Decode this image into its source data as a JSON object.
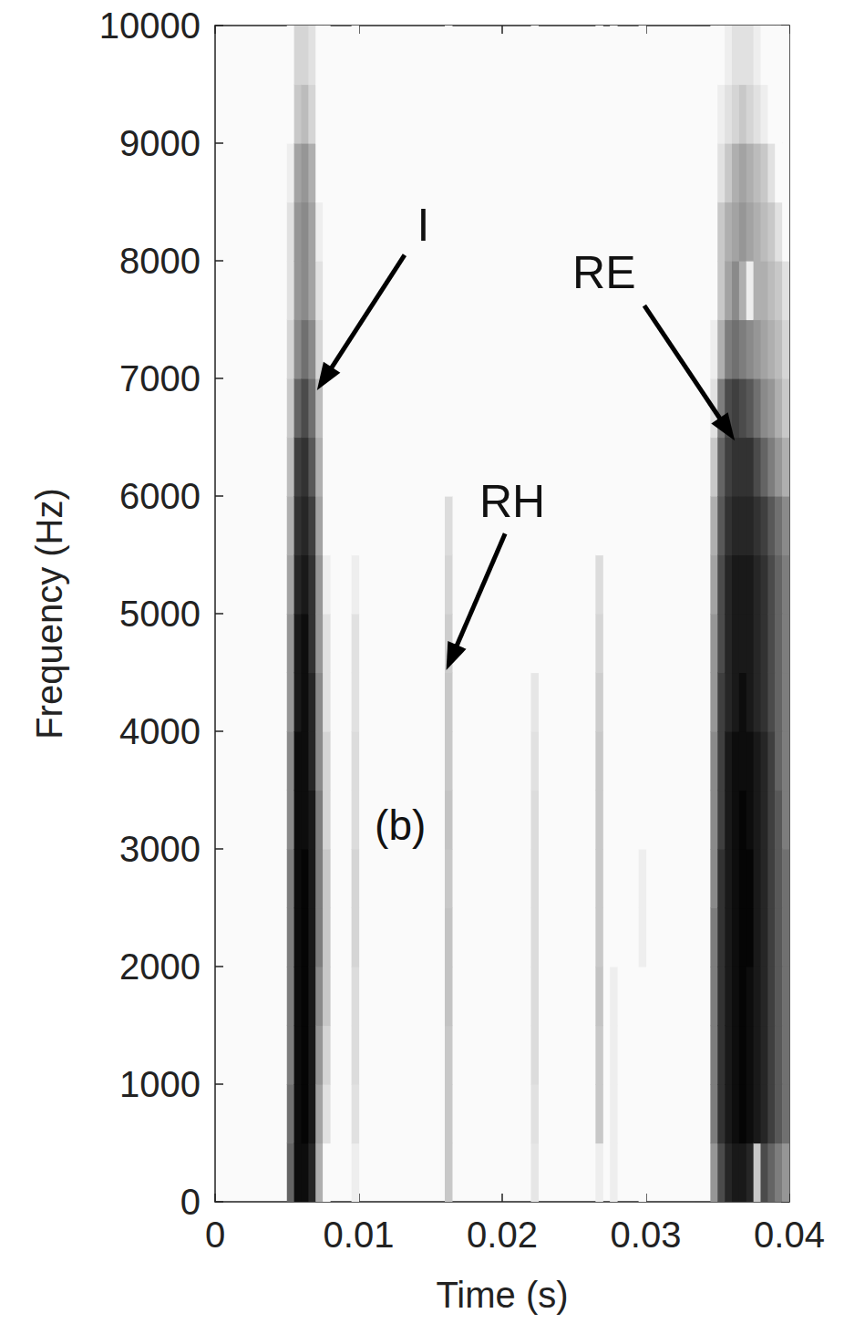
{
  "chart_data": {
    "type": "spectrogram",
    "x_label": "Time (s)",
    "y_label": "Frequency (Hz)",
    "xlim": [
      0,
      0.04
    ],
    "xticks": [
      0,
      0.01,
      0.02,
      0.03,
      0.04
    ],
    "ylim": [
      0,
      10000
    ],
    "yticks": [
      0,
      1000,
      2000,
      3000,
      4000,
      5000,
      6000,
      7000,
      8000,
      9000,
      10000
    ],
    "time_step": 0.0005,
    "frequency_step": 500,
    "frequencies": [
      0,
      500,
      1000,
      1500,
      2000,
      2500,
      3000,
      3500,
      4000,
      4500,
      5000,
      5500,
      6000,
      6500,
      7000,
      7500,
      8000,
      8500,
      9000,
      9500
    ],
    "intensity_range": [
      0,
      1
    ],
    "columns": [
      {
        "time": 0.005,
        "levels": [
          0.6,
          0.55,
          0.5,
          0.5,
          0.5,
          0.5,
          0.45,
          0.45,
          0.4,
          0.4,
          0.35,
          0.3,
          0.25,
          0.2,
          0.15,
          0.1,
          0.1,
          0.05,
          0,
          0
        ]
      },
      {
        "time": 0.0055,
        "levels": [
          0.95,
          0.95,
          0.95,
          0.95,
          0.95,
          0.95,
          0.95,
          0.95,
          0.9,
          0.9,
          0.85,
          0.8,
          0.75,
          0.6,
          0.45,
          0.4,
          0.4,
          0.35,
          0.2,
          0.15
        ]
      },
      {
        "time": 0.006,
        "levels": [
          0.95,
          0.98,
          0.98,
          0.98,
          0.98,
          0.98,
          0.95,
          0.95,
          0.95,
          0.95,
          0.9,
          0.85,
          0.8,
          0.7,
          0.55,
          0.45,
          0.45,
          0.4,
          0.25,
          0.15
        ]
      },
      {
        "time": 0.0065,
        "levels": [
          0.85,
          0.9,
          0.9,
          0.9,
          0.9,
          0.9,
          0.9,
          0.85,
          0.85,
          0.8,
          0.8,
          0.75,
          0.65,
          0.55,
          0.45,
          0.35,
          0.35,
          0.3,
          0.15,
          0.1
        ]
      },
      {
        "time": 0.007,
        "levels": [
          0.3,
          0.35,
          0.4,
          0.45,
          0.5,
          0.5,
          0.5,
          0.45,
          0.45,
          0.4,
          0.4,
          0.35,
          0.3,
          0.25,
          0.15,
          0.1,
          0.05,
          0,
          0,
          0
        ]
      },
      {
        "time": 0.0075,
        "levels": [
          0,
          0.1,
          0.15,
          0.2,
          0.2,
          0.2,
          0.15,
          0.15,
          0.1,
          0.1,
          0.05,
          0,
          0,
          0,
          0,
          0,
          0,
          0,
          0,
          0
        ]
      },
      {
        "time": 0.0095,
        "levels": [
          0.05,
          0.1,
          0.12,
          0.12,
          0.15,
          0.15,
          0.12,
          0.12,
          0.1,
          0.1,
          0.05,
          0,
          0,
          0,
          0,
          0,
          0,
          0,
          0,
          0
        ]
      },
      {
        "time": 0.016,
        "levels": [
          0.2,
          0.2,
          0.2,
          0.22,
          0.22,
          0.2,
          0.22,
          0.2,
          0.2,
          0.18,
          0.15,
          0.12,
          0,
          0,
          0,
          0,
          0,
          0,
          0,
          0
        ]
      },
      {
        "time": 0.022,
        "levels": [
          0.08,
          0.1,
          0.12,
          0.12,
          0.12,
          0.12,
          0.12,
          0.1,
          0.08,
          0,
          0,
          0,
          0,
          0,
          0,
          0,
          0,
          0,
          0,
          0
        ]
      },
      {
        "time": 0.0265,
        "levels": [
          0.05,
          0.2,
          0.2,
          0.22,
          0.2,
          0.2,
          0.2,
          0.2,
          0.18,
          0.15,
          0.12,
          0,
          0,
          0,
          0,
          0,
          0,
          0,
          0,
          0
        ]
      },
      {
        "time": 0.0275,
        "levels": [
          0.05,
          0.05,
          0.05,
          0.05,
          0,
          0,
          0,
          0,
          0,
          0,
          0,
          0,
          0,
          0,
          0,
          0,
          0,
          0,
          0,
          0
        ]
      },
      {
        "time": 0.0295,
        "levels": [
          0,
          0,
          0,
          0,
          0.05,
          0.05,
          0,
          0,
          0,
          0,
          0,
          0,
          0,
          0,
          0,
          0,
          0,
          0,
          0,
          0
        ]
      },
      {
        "time": 0.0345,
        "levels": [
          0.4,
          0.5,
          0.5,
          0.5,
          0.5,
          0.45,
          0.45,
          0.45,
          0.4,
          0.4,
          0.35,
          0.3,
          0.2,
          0.1,
          0.05,
          0,
          0,
          0,
          0,
          0
        ]
      },
      {
        "time": 0.035,
        "levels": [
          0.7,
          0.8,
          0.8,
          0.8,
          0.8,
          0.8,
          0.75,
          0.75,
          0.75,
          0.7,
          0.7,
          0.65,
          0.6,
          0.5,
          0.3,
          0.2,
          0.2,
          0.1,
          0.05,
          0
        ]
      },
      {
        "time": 0.0355,
        "levels": [
          0.85,
          0.9,
          0.9,
          0.9,
          0.9,
          0.9,
          0.9,
          0.9,
          0.85,
          0.85,
          0.85,
          0.8,
          0.75,
          0.7,
          0.5,
          0.35,
          0.3,
          0.2,
          0.1,
          0.05
        ]
      },
      {
        "time": 0.036,
        "levels": [
          0.9,
          0.95,
          0.95,
          0.95,
          0.95,
          0.95,
          0.95,
          0.95,
          0.9,
          0.9,
          0.9,
          0.85,
          0.8,
          0.75,
          0.55,
          0.45,
          0.35,
          0.3,
          0.15,
          0.1
        ]
      },
      {
        "time": 0.0365,
        "levels": [
          0.9,
          0.98,
          0.98,
          0.98,
          0.98,
          0.98,
          0.98,
          0.95,
          0.95,
          0.9,
          0.9,
          0.85,
          0.8,
          0.7,
          0.5,
          0.3,
          0.4,
          0.35,
          0.2,
          0.1
        ]
      },
      {
        "time": 0.037,
        "levels": [
          0.85,
          0.95,
          0.95,
          0.95,
          0.98,
          0.98,
          0.95,
          0.95,
          0.9,
          0.9,
          0.9,
          0.85,
          0.8,
          0.65,
          0.45,
          0.05,
          0.35,
          0.3,
          0.15,
          0.1
        ]
      },
      {
        "time": 0.0375,
        "levels": [
          0.2,
          0.9,
          0.9,
          0.9,
          0.9,
          0.9,
          0.9,
          0.9,
          0.85,
          0.85,
          0.85,
          0.8,
          0.7,
          0.55,
          0.4,
          0.3,
          0.3,
          0.25,
          0.1,
          0.05
        ]
      },
      {
        "time": 0.038,
        "levels": [
          0.7,
          0.85,
          0.85,
          0.85,
          0.85,
          0.85,
          0.85,
          0.85,
          0.8,
          0.8,
          0.8,
          0.75,
          0.6,
          0.45,
          0.35,
          0.3,
          0.25,
          0.2,
          0.05,
          0
        ]
      },
      {
        "time": 0.0385,
        "levels": [
          0.6,
          0.75,
          0.75,
          0.75,
          0.75,
          0.75,
          0.75,
          0.75,
          0.7,
          0.7,
          0.7,
          0.65,
          0.5,
          0.4,
          0.3,
          0.25,
          0.2,
          0.1,
          0,
          0
        ]
      },
      {
        "time": 0.039,
        "levels": [
          0.5,
          0.65,
          0.65,
          0.65,
          0.65,
          0.65,
          0.65,
          0.6,
          0.6,
          0.6,
          0.6,
          0.55,
          0.4,
          0.3,
          0.25,
          0.2,
          0.1,
          0,
          0,
          0
        ]
      },
      {
        "time": 0.0395,
        "levels": [
          0.4,
          0.55,
          0.55,
          0.55,
          0.55,
          0.55,
          0.5,
          0.5,
          0.5,
          0.5,
          0.5,
          0.45,
          0.3,
          0.2,
          0.15,
          0.1,
          0,
          0,
          0,
          0
        ]
      }
    ],
    "annotations": [
      {
        "text": "I",
        "at": [
          0.0145,
          8300
        ],
        "arrow": {
          "from": [
            0.0132,
            8050
          ],
          "to": [
            0.0071,
            6900
          ]
        }
      },
      {
        "text": "RE",
        "at": [
          0.0271,
          7900
        ],
        "arrow": {
          "from": [
            0.0299,
            7620
          ],
          "to": [
            0.0362,
            6470
          ]
        }
      },
      {
        "text": "RH",
        "at": [
          0.0207,
          5950
        ],
        "arrow": {
          "from": [
            0.0202,
            5680
          ],
          "to": [
            0.0161,
            4520
          ]
        }
      },
      {
        "text": "(b)",
        "at": [
          0.0129,
          3200
        ]
      }
    ]
  }
}
